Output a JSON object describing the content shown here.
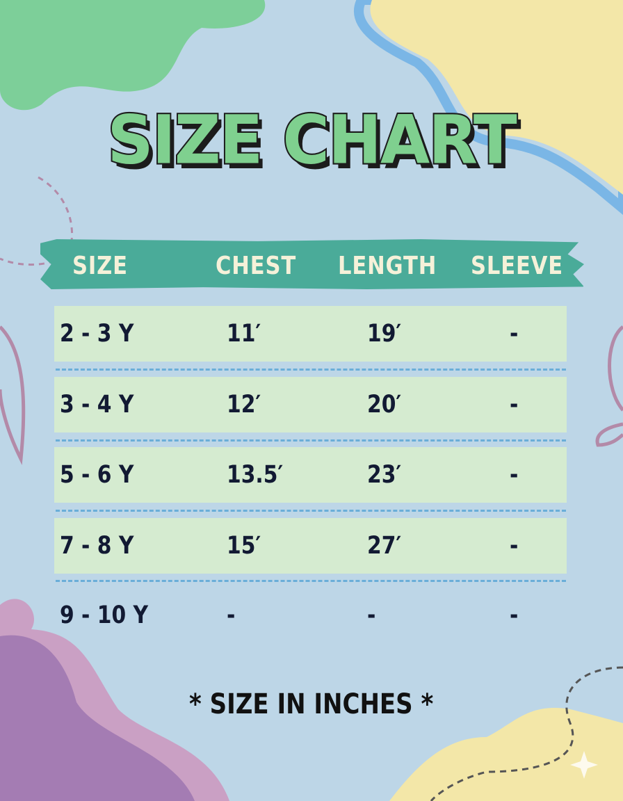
{
  "title": "SIZE CHART",
  "table": {
    "headers": [
      "SIZE",
      "CHEST",
      "LENGTH",
      "SLEEVE"
    ],
    "rows": [
      [
        "2 - 3 Y",
        "11′",
        "19′",
        "-"
      ],
      [
        "3 - 4 Y",
        "12′",
        "20′",
        "-"
      ],
      [
        "5 - 6 Y",
        "13.5′",
        "23′",
        "-"
      ],
      [
        "7 - 8 Y",
        "15′",
        "27′",
        "-"
      ],
      [
        "9 - 10 Y",
        "-",
        "-",
        "-"
      ]
    ]
  },
  "note": "* SIZE IN INCHES *",
  "colors": {
    "background": "#bdd6e7",
    "title": "#7fd08f",
    "header": "#4aab99",
    "row": "#d5ebd0",
    "text": "#121a33"
  }
}
